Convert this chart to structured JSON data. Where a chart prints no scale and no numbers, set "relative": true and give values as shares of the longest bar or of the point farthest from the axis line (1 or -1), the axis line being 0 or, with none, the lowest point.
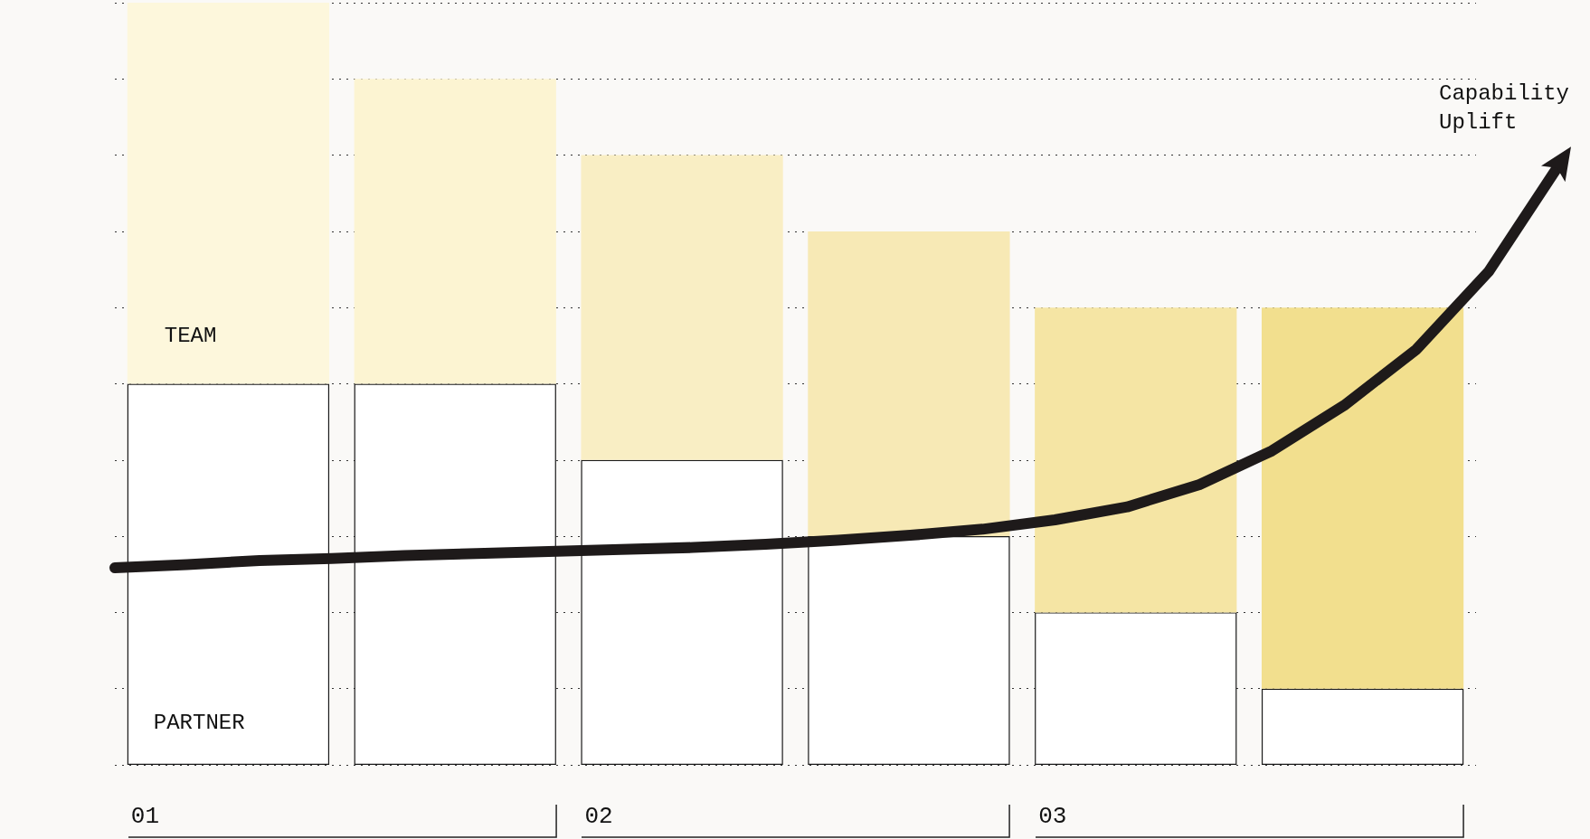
{
  "chart_data": [
    {
      "type": "bar",
      "relative": true,
      "stacked": true,
      "grid": "y",
      "legend": false,
      "categories": [
        null,
        null,
        null,
        null,
        null,
        null
      ],
      "series": [
        {
          "name": "PARTNER",
          "color": "#ffffff",
          "values": [
            0.5,
            0.5,
            0.4,
            0.3,
            0.2,
            0.1
          ]
        },
        {
          "name": "TEAM",
          "colors": [
            "#fdf7dc",
            "#fcf4d2",
            "#f9eec4",
            "#f7e9b5",
            "#f5e5a4",
            "#f2df8e"
          ],
          "values": [
            0.5,
            0.4,
            0.4,
            0.4,
            0.4,
            0.5
          ]
        }
      ],
      "annotations": [
        "01",
        "02",
        "03"
      ]
    },
    {
      "type": "line",
      "relative": true,
      "legend": false,
      "categories": [
        null,
        null,
        null,
        null,
        null,
        null,
        null,
        null,
        null,
        null,
        null,
        null,
        null,
        null,
        null,
        null,
        null,
        null,
        null,
        null,
        null
      ],
      "series": [
        {
          "name": "Capability Uplift",
          "color": "#1e1a1a",
          "values": [
            0,
            0.008,
            0.018,
            0.023,
            0.03,
            0.035,
            0.04,
            0.045,
            0.05,
            0.058,
            0.068,
            0.08,
            0.095,
            0.118,
            0.15,
            0.205,
            0.288,
            0.4,
            0.538,
            0.73,
            1
          ]
        }
      ]
    }
  ]
}
